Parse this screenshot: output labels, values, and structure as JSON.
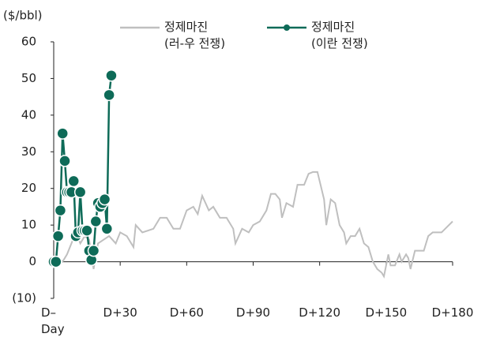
{
  "chart_data": {
    "type": "line",
    "y_unit": "($/bbl)",
    "xlim": [
      0,
      180
    ],
    "ylim": [
      -10,
      60
    ],
    "xticks": [
      {
        "value": 0,
        "label": "D–\nDay"
      },
      {
        "value": 30,
        "label": "D+30"
      },
      {
        "value": 60,
        "label": "D+60"
      },
      {
        "value": 90,
        "label": "D+90"
      },
      {
        "value": 120,
        "label": "D+120"
      },
      {
        "value": 150,
        "label": "D+150"
      },
      {
        "value": 180,
        "label": "D+180"
      }
    ],
    "yticks": [
      {
        "value": -10,
        "label": "(10)"
      },
      0,
      10,
      20,
      30,
      40,
      50,
      60
    ],
    "series": [
      {
        "name": "정제마진\n(러-우 전쟁)",
        "color": "#bfbfbf",
        "markers": false,
        "x": [
          0,
          2,
          4,
          6,
          8,
          10,
          12,
          14,
          16,
          18,
          20,
          25,
          28,
          30,
          33,
          36,
          37,
          40,
          45,
          48,
          51,
          54,
          57,
          60,
          63,
          65,
          67,
          70,
          72,
          75,
          78,
          81,
          82,
          85,
          88,
          90,
          93,
          96,
          98,
          100,
          102,
          103,
          105,
          108,
          110,
          113,
          115,
          117,
          119,
          120,
          122,
          123,
          125,
          127,
          129,
          131,
          132,
          134,
          136,
          138,
          140,
          142,
          144,
          146,
          148,
          149,
          151,
          152,
          154,
          156,
          157,
          159,
          160,
          161,
          163,
          165,
          167,
          169,
          171,
          173,
          175,
          180
        ],
        "values": [
          0,
          1,
          0,
          2,
          5,
          8,
          5,
          7,
          6,
          -2,
          5,
          7,
          5,
          8,
          7,
          4,
          10,
          8,
          9,
          12,
          12,
          9,
          9,
          14,
          15,
          13,
          18,
          14,
          15,
          12,
          12,
          9,
          5,
          9,
          8,
          10,
          11,
          14,
          18.5,
          18.5,
          17,
          12,
          16,
          15,
          21,
          21,
          24,
          24.5,
          24.5,
          22,
          17,
          10,
          17,
          16,
          10,
          8,
          5,
          7,
          7,
          9,
          5,
          4,
          0,
          -2,
          -3,
          -4,
          2,
          -1,
          -1,
          2,
          0,
          2,
          1,
          -2,
          3,
          3,
          3,
          7,
          8,
          8,
          8,
          11
        ]
      },
      {
        "name": "정제마진\n(이란 전쟁)",
        "color": "#0e6b58",
        "markers": true,
        "x": [
          0,
          1,
          2,
          3,
          4,
          5,
          6,
          7,
          8,
          9,
          10,
          11,
          12,
          13,
          14,
          15,
          16,
          17,
          18,
          19,
          20,
          21,
          22,
          23,
          24,
          25,
          26
        ],
        "values": [
          0,
          0,
          7,
          14,
          35,
          27.5,
          19,
          19,
          19,
          22,
          7,
          8,
          19,
          8.5,
          8.5,
          8.5,
          3,
          0.5,
          3,
          11,
          16,
          15,
          16,
          17,
          9,
          45.5,
          50.8
        ]
      }
    ]
  }
}
